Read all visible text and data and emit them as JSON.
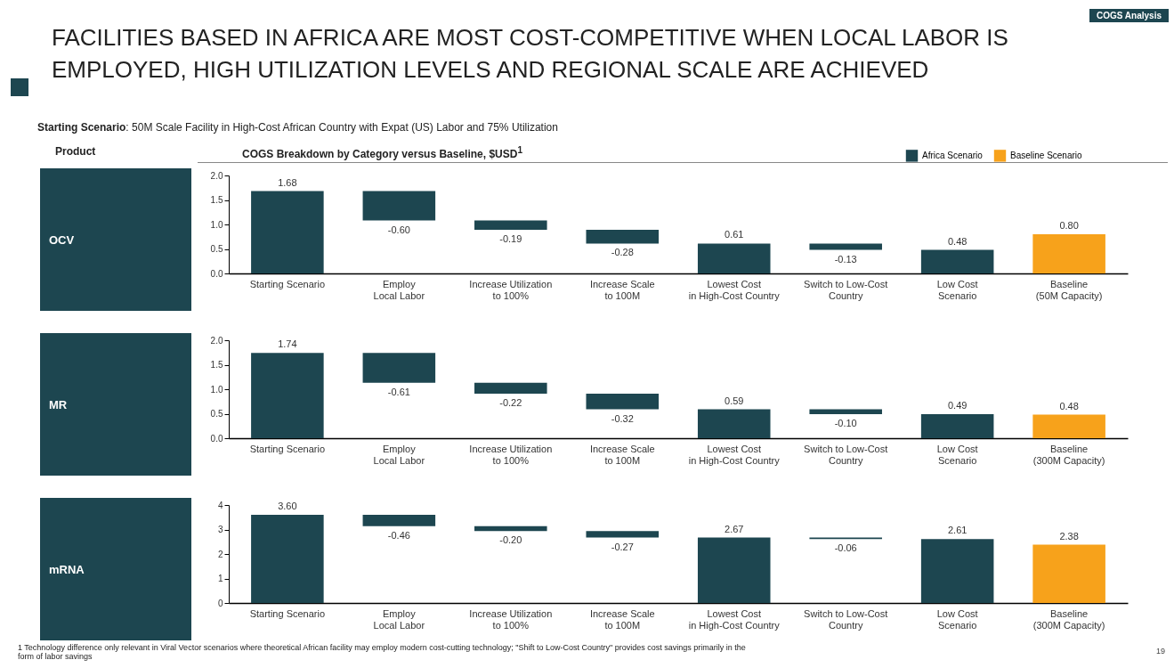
{
  "chart_data": [
    {
      "type": "bar",
      "title": "FACILITIES BASED IN AFRICA ARE MOST COST-COMPETITIVE WHEN LOCAL LABOR IS EMPLOYED, HIGH UTILIZATION LEVELS AND REGIONAL SCALE ARE ACHIEVED",
      "subtitle": "Starting Scenario: 50M Scale Facility in High-Cost African Country with Expat (US) Labor and 75% Utilization",
      "ylabel": "OCV",
      "annotations": [
        "COGS Analysis",
        "Product",
        "COGS Breakdown by Category versus Baseline, $USD$^{1}$"
      ],
      "categories": [
        "Starting Scenario",
        "Employ\nLocal Labor",
        "Increase Utilization\nto 100%",
        "Increase Scale\nto 100M",
        "Lowest Cost\nin High-Cost Country",
        "Switch to Low-Cost\nCountry",
        "Low Cost\nScenario",
        "Baseline\n(50M Capacity)"
      ],
      "series": [
        {
          "name": "Africa Scenario",
          "color": "#1d4650",
          "base": [
            0,
            1.68,
            1.08,
            0.89,
            0,
            0.61,
            0,
            null
          ],
          "values": [
            1.68,
            -0.6,
            -0.19,
            -0.28,
            0.61,
            -0.13,
            0.48,
            null
          ],
          "value_labels": [
            "1.68",
            "-0.60",
            "-0.19",
            "-0.28",
            "0.61",
            "-0.13",
            "0.48",
            null
          ]
        },
        {
          "name": "Baseline Scenario",
          "color": "#f7a21b",
          "values": [
            null,
            null,
            null,
            null,
            null,
            null,
            null,
            0.8
          ],
          "value_labels": [
            null,
            null,
            null,
            null,
            null,
            null,
            null,
            "0.80"
          ]
        }
      ],
      "ylim": [
        0,
        2
      ],
      "yticks": [
        {
          "value": 0,
          "label": "0.0"
        },
        {
          "value": 0.5,
          "label": "0.5"
        },
        {
          "value": 1,
          "label": "1.0"
        },
        {
          "value": 1.5,
          "label": "1.5"
        },
        {
          "value": 2,
          "label": "2.0"
        }
      ],
      "legend": "top right"
    },
    {
      "type": "bar",
      "ylabel": "MR",
      "categories": [
        "Starting Scenario",
        "Employ\nLocal Labor",
        "Increase Utilization\nto 100%",
        "Increase Scale\nto 100M",
        "Lowest Cost\nin High-Cost Country",
        "Switch to Low-Cost\nCountry",
        "Low Cost\nScenario",
        "Baseline\n(300M Capacity)"
      ],
      "series": [
        {
          "color": "#1d4650",
          "base": [
            0,
            1.74,
            1.13,
            0.91,
            0,
            0.59,
            0,
            null
          ],
          "values": [
            1.74,
            -0.61,
            -0.22,
            -0.32,
            0.59,
            -0.1,
            0.49,
            null
          ],
          "value_labels": [
            "1.74",
            "-0.61",
            "-0.22",
            "-0.32",
            "0.59",
            "-0.10",
            "0.49",
            null
          ]
        },
        {
          "color": "#f7a21b",
          "values": [
            null,
            null,
            null,
            null,
            null,
            null,
            null,
            0.48
          ],
          "value_labels": [
            null,
            null,
            null,
            null,
            null,
            null,
            null,
            "0.48"
          ]
        }
      ],
      "ylim": [
        0,
        2
      ],
      "yticks": [
        {
          "value": 0,
          "label": "0.0"
        },
        {
          "value": 0.5,
          "label": "0.5"
        },
        {
          "value": 1,
          "label": "1.0"
        },
        {
          "value": 1.5,
          "label": "1.5"
        },
        {
          "value": 2,
          "label": "2.0"
        }
      ]
    },
    {
      "type": "bar",
      "ylabel": "mRNA",
      "annotations": [
        "1 Technology difference only relevant in Viral Vector scenarios where theoretical African facility may employ modern cost-cutting technology; \"Shift to Low-Cost Country\" provides cost savings primarily in the form of labor savings",
        "19"
      ],
      "categories": [
        "Starting Scenario",
        "Employ\nLocal Labor",
        "Increase Utilization\nto 100%",
        "Increase Scale\nto 100M",
        "Lowest Cost\nin High-Cost Country",
        "Switch to Low-Cost\nCountry",
        "Low Cost\nScenario",
        "Baseline\n(300M Capacity)"
      ],
      "series": [
        {
          "color": "#1d4650",
          "base": [
            0,
            3.6,
            3.14,
            2.94,
            0,
            2.67,
            0,
            null
          ],
          "values": [
            3.6,
            -0.46,
            -0.2,
            -0.27,
            2.67,
            -0.06,
            2.61,
            null
          ],
          "value_labels": [
            "3.60",
            "-0.46",
            "-0.20",
            "-0.27",
            "2.67",
            "-0.06",
            "2.61",
            null
          ]
        },
        {
          "color": "#f7a21b",
          "values": [
            null,
            null,
            null,
            null,
            null,
            null,
            null,
            2.38
          ],
          "value_labels": [
            null,
            null,
            null,
            null,
            null,
            null,
            null,
            "2.38"
          ]
        }
      ],
      "ylim": [
        0,
        4
      ],
      "yticks": [
        0,
        1,
        2,
        3,
        4
      ]
    }
  ]
}
